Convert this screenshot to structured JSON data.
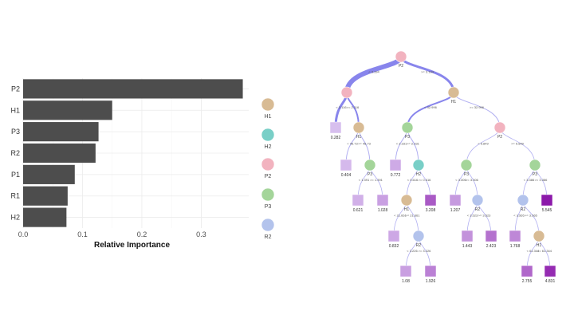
{
  "chart_data": [
    {
      "type": "bar",
      "orientation": "horizontal",
      "categories": [
        "P2",
        "H1",
        "P3",
        "R2",
        "P1",
        "R1",
        "H2"
      ],
      "values": [
        0.37,
        0.15,
        0.127,
        0.122,
        0.087,
        0.075,
        0.073
      ],
      "xlabel": "Relative Importance",
      "xlim": [
        0,
        0.38
      ],
      "xticks": [
        0.0,
        0.1,
        0.2,
        0.3
      ],
      "xtick_labels": [
        "0.0",
        "0.1",
        "0.2",
        "0.3"
      ],
      "bar_color": "#4d4d4d",
      "grid": true
    },
    {
      "type": "tree",
      "legend": [
        {
          "label": "H1",
          "color": "#d8bb94"
        },
        {
          "label": "H2",
          "color": "#79cfc7"
        },
        {
          "label": "P2",
          "color": "#f2b3bf"
        },
        {
          "label": "P3",
          "color": "#a4d59a"
        },
        {
          "label": "R2",
          "color": "#b3c3ec"
        }
      ],
      "nodes": [
        {
          "id": "n0",
          "label": "P2",
          "var": "P2"
        },
        {
          "id": "n1",
          "label": "",
          "var": "P2"
        },
        {
          "id": "n2",
          "label": "H1",
          "var": "H1"
        },
        {
          "id": "n3",
          "label": "H1",
          "var": "H1"
        },
        {
          "id": "n4",
          "label": "P3",
          "var": "P3"
        },
        {
          "id": "n5",
          "label": "P2",
          "var": "P2"
        },
        {
          "id": "n6",
          "label": "P3",
          "var": "P3"
        },
        {
          "id": "n7",
          "label": "H2",
          "var": "H2"
        },
        {
          "id": "n8",
          "label": "P3",
          "var": "P3"
        },
        {
          "id": "n9",
          "label": "P3",
          "var": "P3"
        },
        {
          "id": "n10",
          "label": "H1",
          "var": "H1"
        },
        {
          "id": "n11",
          "label": "R2",
          "var": "R2"
        },
        {
          "id": "n12",
          "label": "R2",
          "var": "R2"
        },
        {
          "id": "n13",
          "label": "R2",
          "var": "R2"
        },
        {
          "id": "n14",
          "label": "H1",
          "var": "H1"
        }
      ],
      "leaves": [
        {
          "id": "l0",
          "value": "0.282"
        },
        {
          "id": "l1",
          "value": "0.404"
        },
        {
          "id": "l2",
          "value": "0.772"
        },
        {
          "id": "l3",
          "value": "0.621"
        },
        {
          "id": "l4",
          "value": "1.028"
        },
        {
          "id": "l5",
          "value": "3.208"
        },
        {
          "id": "l6",
          "value": "1.207"
        },
        {
          "id": "l7",
          "value": "5.545"
        },
        {
          "id": "l8",
          "value": "0.832"
        },
        {
          "id": "l9",
          "value": "1.443"
        },
        {
          "id": "l10",
          "value": "2.423"
        },
        {
          "id": "l11",
          "value": "1.768"
        },
        {
          "id": "l12",
          "value": "1.08"
        },
        {
          "id": "l13",
          "value": "1.926"
        },
        {
          "id": "l14",
          "value": "2.755"
        },
        {
          "id": "l15",
          "value": "4.831"
        }
      ],
      "edge_labels": [
        {
          "id": "e0",
          "text": "< 3.194"
        },
        {
          "id": "e1",
          "text": ">= 3.194"
        },
        {
          "id": "e2",
          "text": "< 2.116"
        },
        {
          "id": "e3",
          "text": ">= 2.116"
        },
        {
          "id": "e4",
          "text": "< 32.996"
        },
        {
          "id": "e5",
          "text": ">= 32.996"
        },
        {
          "id": "e6",
          "text": "< 46.73"
        },
        {
          "id": "e7",
          "text": ">= 46.73"
        },
        {
          "id": "e8",
          "text": "< 2.331"
        },
        {
          "id": "e9",
          "text": ">= 2.331"
        },
        {
          "id": "e10",
          "text": "< 5.849"
        },
        {
          "id": "e11",
          "text": ">= 5.849"
        },
        {
          "id": "e12",
          "text": "< 1.391"
        },
        {
          "id": "e13",
          "text": ">= 1.391"
        },
        {
          "id": "e14",
          "text": "< 0.616"
        },
        {
          "id": "e15",
          "text": ">= 0.616"
        },
        {
          "id": "e16",
          "text": "< 3.306"
        },
        {
          "id": "e17",
          "text": ">= 3.306"
        },
        {
          "id": "e18",
          "text": "< 3.386"
        },
        {
          "id": "e19",
          "text": ">= 3.386"
        },
        {
          "id": "e20",
          "text": "< 21.661"
        },
        {
          "id": "e21",
          "text": ">= 21.661"
        },
        {
          "id": "e22",
          "text": "< 3.523"
        },
        {
          "id": "e23",
          "text": ">= 3.523"
        },
        {
          "id": "e24",
          "text": "< 3.565"
        },
        {
          "id": "e25",
          "text": ">= 3.565"
        },
        {
          "id": "e26",
          "text": "< 3.226"
        },
        {
          "id": "e27",
          "text": ">= 3.226"
        },
        {
          "id": "e28",
          "text": "< 61.344"
        },
        {
          "id": "e29",
          "text": ">= 61.344"
        }
      ]
    }
  ]
}
